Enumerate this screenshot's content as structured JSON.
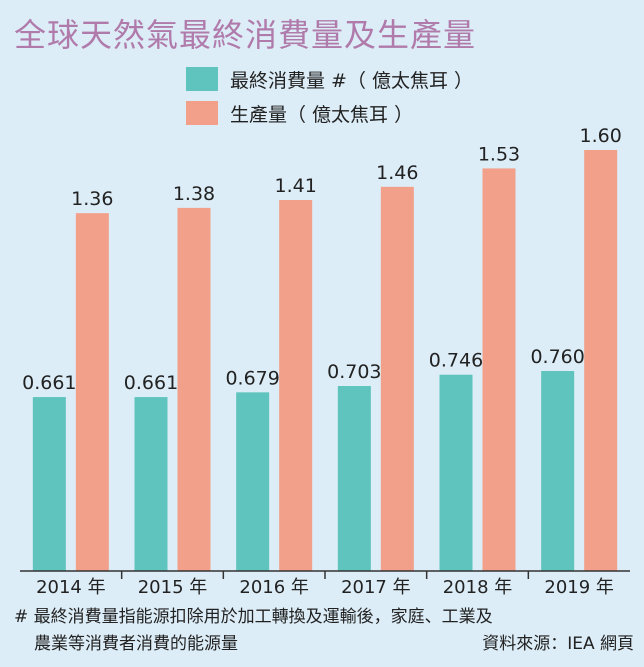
{
  "title": "全球天然氣最終消費量及生產量",
  "colors": {
    "consumption": "#5ec4bd",
    "production": "#f2a08a",
    "background": "#dcedf7",
    "title": "#b07bab"
  },
  "chart_data": {
    "type": "bar",
    "categories": [
      "2014 年",
      "2015 年",
      "2016 年",
      "2017 年",
      "2018 年",
      "2019 年"
    ],
    "series": [
      {
        "name": "最終消費量 #（ 億太焦耳 ）",
        "values": [
          0.661,
          0.661,
          0.679,
          0.703,
          0.746,
          0.76
        ],
        "labels": [
          "0.661",
          "0.661",
          "0.679",
          "0.703",
          "0.746",
          "0.760"
        ]
      },
      {
        "name": "生產量（ 億太焦耳 ）",
        "values": [
          1.36,
          1.38,
          1.41,
          1.46,
          1.53,
          1.6
        ],
        "labels": [
          "1.36",
          "1.38",
          "1.41",
          "1.46",
          "1.53",
          "1.60"
        ]
      }
    ],
    "ylim": [
      0,
      1.6
    ],
    "legend": "top-center",
    "grid": false
  },
  "footnote": {
    "line1": "# 最終消費量指能源扣除用於加工轉換及運輸後，家庭、工業及",
    "line2": "農業等消費者消費的能源量",
    "source": "資料來源：IEA 網頁"
  }
}
